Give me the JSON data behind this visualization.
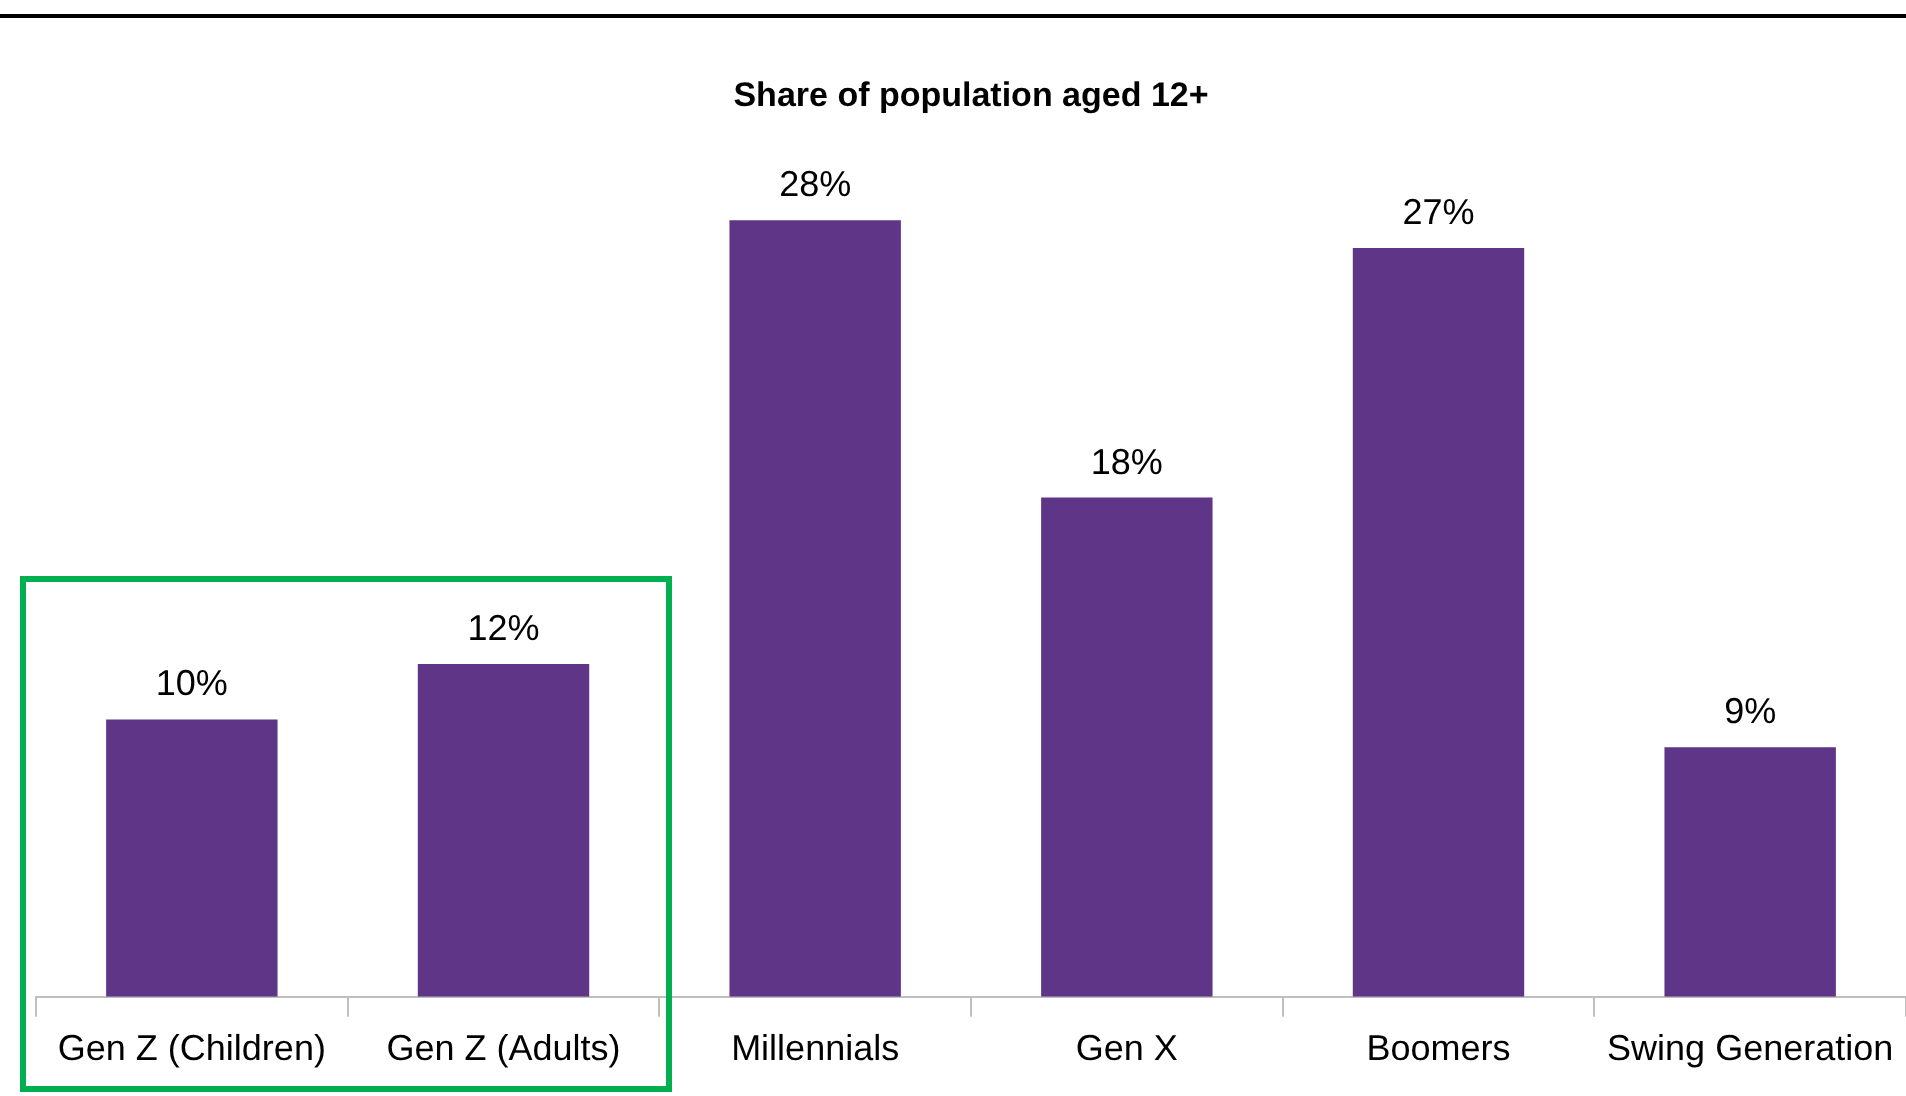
{
  "chart_data": {
    "type": "bar",
    "title": "Share of population aged 12+",
    "categories": [
      "Gen Z (Children)",
      "Gen Z (Adults)",
      "Millennials",
      "Gen X",
      "Boomers",
      "Swing Generation"
    ],
    "values": [
      10,
      12,
      28,
      18,
      27,
      9
    ],
    "value_labels": [
      "10%",
      "12%",
      "28%",
      "18%",
      "27%",
      "9%"
    ],
    "color": "#5e3587",
    "grid": false,
    "legend": false
  }
}
